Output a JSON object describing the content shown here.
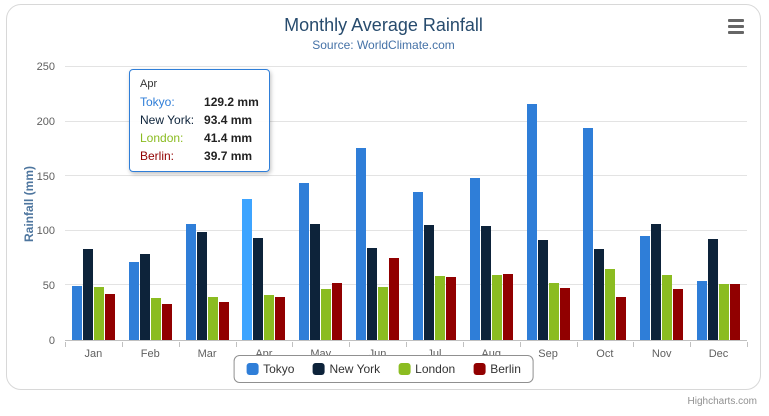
{
  "chart": {
    "title": "Monthly Average Rainfall",
    "subtitle": "Source: WorldClimate.com",
    "y_axis_title": "Rainfall (mm)",
    "credits": "Highcharts.com"
  },
  "chart_data": {
    "type": "bar",
    "title": "Monthly Average Rainfall",
    "subtitle": "Source: WorldClimate.com",
    "xlabel": "",
    "ylabel": "Rainfall (mm)",
    "ylim": [
      0,
      250
    ],
    "yticks": [
      0,
      50,
      100,
      150,
      200,
      250
    ],
    "grid": true,
    "legend_position": "bottom",
    "categories": [
      "Jan",
      "Feb",
      "Mar",
      "Apr",
      "May",
      "Jun",
      "Jul",
      "Aug",
      "Sep",
      "Oct",
      "Nov",
      "Dec"
    ],
    "series": [
      {
        "name": "Tokyo",
        "color": "#2f7ed8",
        "values": [
          49.9,
          71.5,
          106.4,
          129.2,
          144.0,
          176.0,
          135.6,
          148.5,
          216.4,
          194.1,
          95.6,
          54.4
        ]
      },
      {
        "name": "New York",
        "color": "#0d233a",
        "values": [
          83.6,
          78.8,
          98.5,
          93.4,
          106.0,
          84.5,
          105.0,
          104.3,
          91.2,
          83.5,
          106.6,
          92.3
        ]
      },
      {
        "name": "London",
        "color": "#8bbc21",
        "values": [
          48.9,
          38.8,
          39.3,
          41.4,
          47.0,
          48.3,
          59.0,
          59.6,
          52.4,
          65.2,
          59.3,
          51.2
        ]
      },
      {
        "name": "Berlin",
        "color": "#910000",
        "values": [
          42.4,
          33.2,
          34.5,
          39.7,
          52.6,
          75.5,
          57.4,
          60.4,
          47.6,
          39.1,
          46.8,
          51.1
        ]
      }
    ],
    "hover_point": {
      "series": "Tokyo",
      "category": "Apr"
    }
  },
  "tooltip": {
    "header": "Apr",
    "rows": [
      {
        "name": "Tokyo",
        "value": "129.2 mm",
        "color": "#2f7ed8"
      },
      {
        "name": "New York",
        "value": "93.4 mm",
        "color": "#0d233a"
      },
      {
        "name": "London",
        "value": "41.4 mm",
        "color": "#8bbc21"
      },
      {
        "name": "Berlin",
        "value": "39.7 mm",
        "color": "#910000"
      }
    ],
    "border_color": "#2f7ed8"
  }
}
